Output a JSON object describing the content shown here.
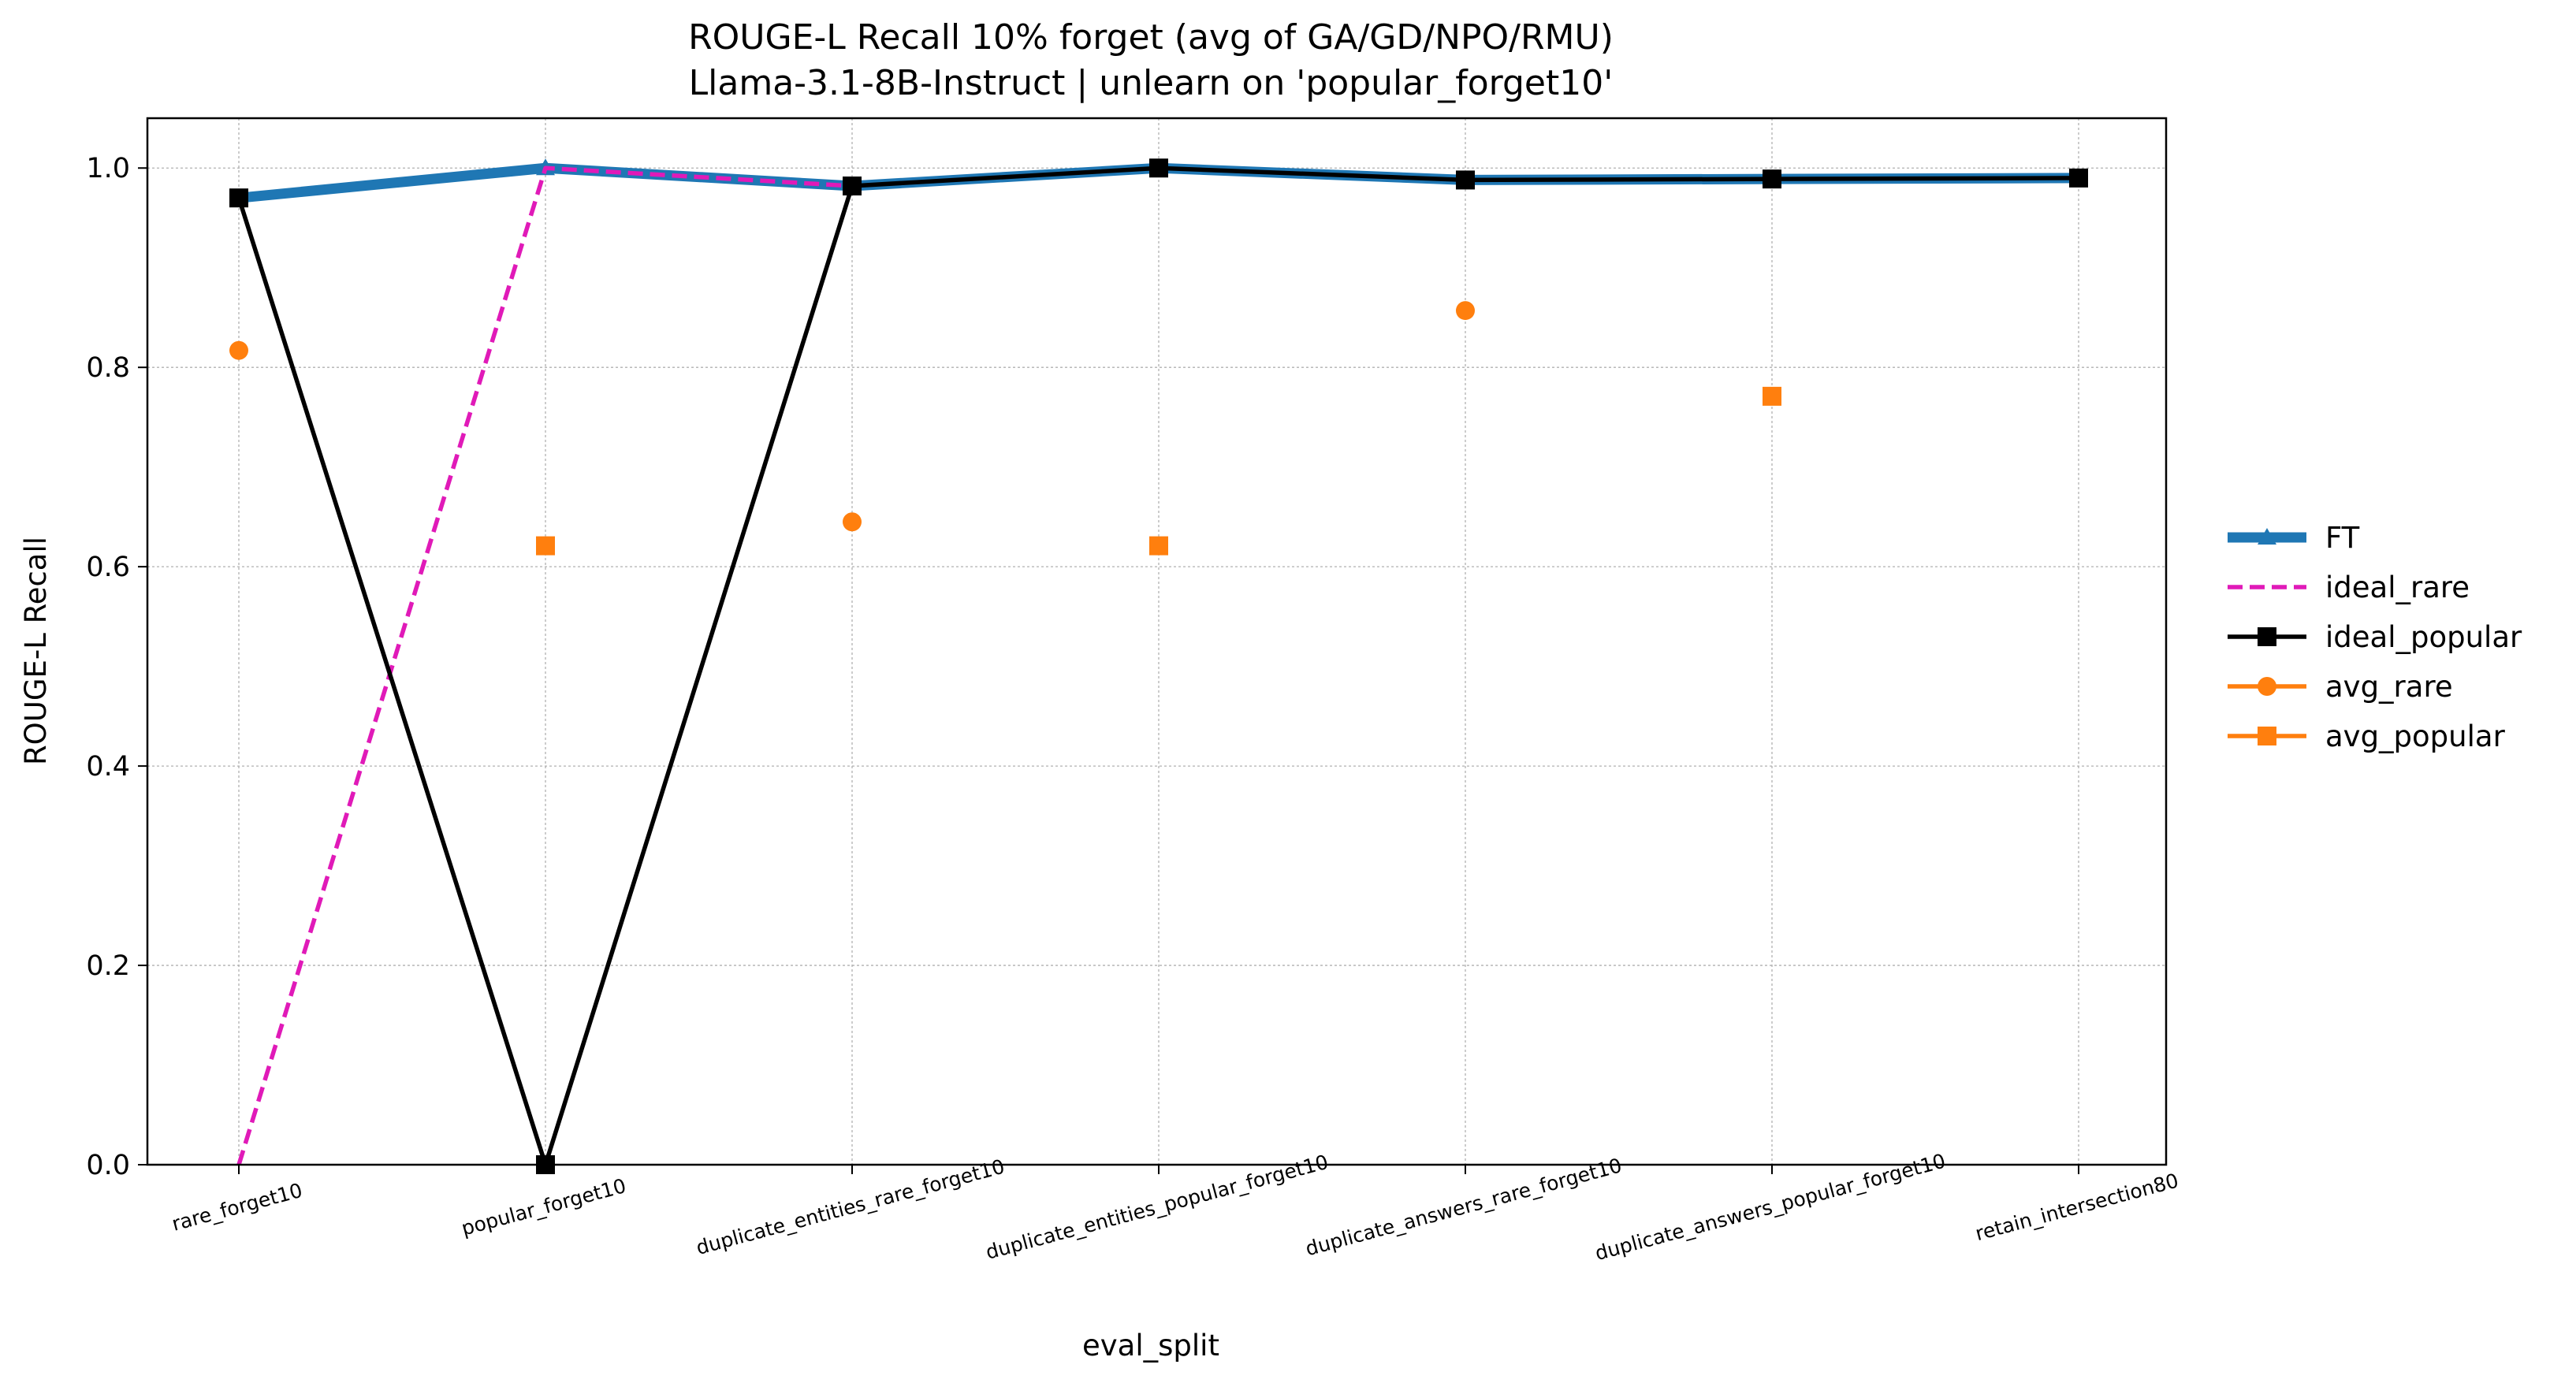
{
  "chart_data": {
    "type": "line",
    "title": "ROUGE-L Recall 10% forget (avg of GA/GD/NPO/RMU)",
    "subtitle": "Llama-3.1-8B-Instruct | unlearn on 'popular_forget10'",
    "xlabel": "eval_split",
    "ylabel": "ROUGE-L Recall",
    "ylim": [
      0.0,
      1.05
    ],
    "yticks": [
      "0.0",
      "0.2",
      "0.4",
      "0.6",
      "0.8",
      "1.0"
    ],
    "grid": true,
    "legend_position": "right, outside",
    "categories": [
      "rare_forget10",
      "popular_forget10",
      "duplicate_entities_rare_forget10",
      "duplicate_entities_popular_forget10",
      "duplicate_answers_rare_forget10",
      "duplicate_answers_popular_forget10",
      "retain_intersection80"
    ],
    "series": [
      {
        "name": "FT",
        "color": "#1f77b4",
        "marker": "triangle",
        "style": "solid-thick",
        "values": [
          0.97,
          1.0,
          0.982,
          1.0,
          0.988,
          0.989,
          0.99
        ]
      },
      {
        "name": "ideal_rare",
        "color": "#e01ab8",
        "marker": "none",
        "style": "dashed",
        "values": [
          0.0,
          1.0,
          0.982,
          null,
          null,
          null,
          null
        ]
      },
      {
        "name": "ideal_popular",
        "color": "#000000",
        "marker": "square",
        "style": "solid",
        "values": [
          0.97,
          0.0,
          0.982,
          1.0,
          0.988,
          0.989,
          0.99
        ]
      },
      {
        "name": "avg_rare",
        "color": "#ff7f0e",
        "marker": "circle",
        "style": "solid",
        "values": [
          0.817,
          null,
          0.645,
          null,
          0.857,
          null,
          null
        ]
      },
      {
        "name": "avg_popular",
        "color": "#ff7f0e",
        "marker": "square",
        "style": "solid",
        "values": [
          null,
          0.621,
          null,
          0.621,
          null,
          0.771,
          null
        ]
      }
    ]
  }
}
